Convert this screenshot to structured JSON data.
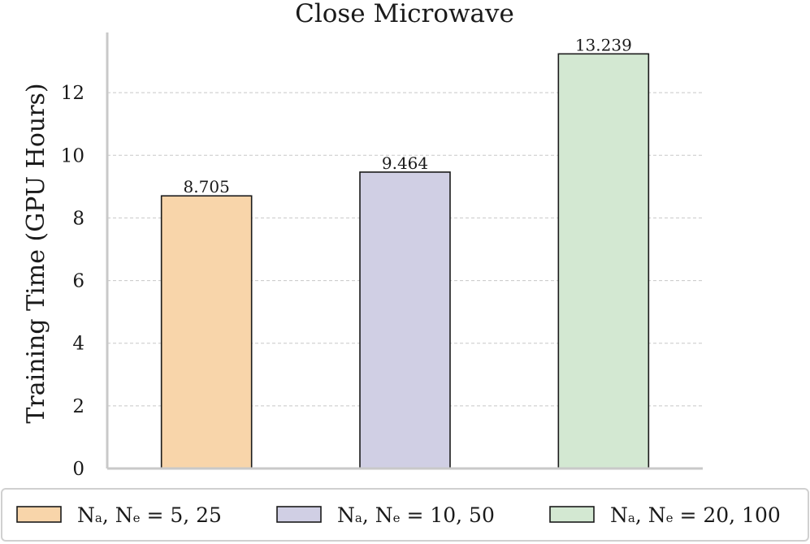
{
  "chart_data": {
    "type": "bar",
    "title": "Close Microwave",
    "ylabel": "Training Time (GPU Hours)",
    "xlabel": "",
    "ylim": [
      0,
      14
    ],
    "yticks": [
      0,
      2,
      4,
      6,
      8,
      10,
      12
    ],
    "grid": "horizontal dashed",
    "legend_position": "bottom",
    "series": [
      {
        "label_main": "N",
        "sub_a": "a",
        "sep": ", N",
        "sub_e": "e",
        "label_tail": " = 5, 25",
        "value": 8.705,
        "value_label": "8.705",
        "color": "#f8d5aa"
      },
      {
        "label_main": "N",
        "sub_a": "a",
        "sep": ", N",
        "sub_e": "e",
        "label_tail": " = 10, 50",
        "value": 9.464,
        "value_label": "9.464",
        "color": "#d0cfe4"
      },
      {
        "label_main": "N",
        "sub_a": "a",
        "sep": ", N",
        "sub_e": "e",
        "label_tail": " = 20, 100",
        "value": 13.239,
        "value_label": "13.239",
        "color": "#d3e8d2"
      }
    ]
  }
}
